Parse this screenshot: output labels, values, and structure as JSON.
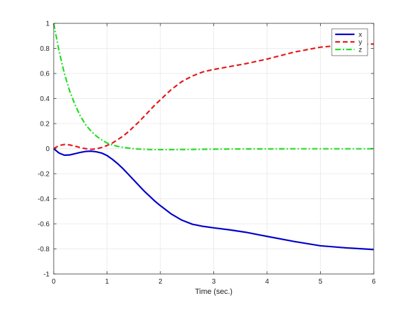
{
  "chart_data": {
    "type": "line",
    "title": "",
    "xlabel": "Time (sec.)",
    "ylabel": "",
    "xlim": [
      0,
      6
    ],
    "ylim": [
      -1,
      1
    ],
    "xticks": [
      0,
      1,
      2,
      3,
      4,
      5,
      6
    ],
    "xtick_labels": [
      "0",
      "1",
      "2",
      "3",
      "4",
      "5",
      "6"
    ],
    "yticks": [
      -1,
      -0.8,
      -0.6,
      -0.4,
      -0.2,
      0,
      0.2,
      0.4,
      0.6,
      0.8,
      1
    ],
    "ytick_labels": [
      "-1",
      "-0.8",
      "-0.6",
      "-0.4",
      "-0.2",
      "0",
      "0.2",
      "0.4",
      "0.6",
      "0.8",
      "1"
    ],
    "grid": true,
    "legend_position": "top-right",
    "series": [
      {
        "name": "x",
        "color": "#0000cc",
        "dash": "solid",
        "x": [
          0,
          0.1,
          0.2,
          0.3,
          0.4,
          0.5,
          0.6,
          0.7,
          0.8,
          0.9,
          1.0,
          1.1,
          1.2,
          1.3,
          1.4,
          1.5,
          1.6,
          1.7,
          1.8,
          1.9,
          2.0,
          2.2,
          2.4,
          2.6,
          2.8,
          3.0,
          3.3,
          3.6,
          4.0,
          4.5,
          5.0,
          5.5,
          6.0
        ],
        "y": [
          0,
          -0.035,
          -0.052,
          -0.05,
          -0.04,
          -0.03,
          -0.022,
          -0.02,
          -0.025,
          -0.035,
          -0.055,
          -0.085,
          -0.12,
          -0.16,
          -0.205,
          -0.25,
          -0.295,
          -0.34,
          -0.38,
          -0.42,
          -0.455,
          -0.52,
          -0.57,
          -0.603,
          -0.62,
          -0.632,
          -0.648,
          -0.667,
          -0.7,
          -0.74,
          -0.775,
          -0.792,
          -0.805
        ]
      },
      {
        "name": "y",
        "color": "#e31a1c",
        "dash": "dashed",
        "x": [
          0,
          0.1,
          0.2,
          0.3,
          0.4,
          0.5,
          0.6,
          0.7,
          0.8,
          0.9,
          1.0,
          1.1,
          1.2,
          1.3,
          1.4,
          1.5,
          1.6,
          1.7,
          1.8,
          1.9,
          2.0,
          2.2,
          2.4,
          2.6,
          2.8,
          3.0,
          3.3,
          3.6,
          4.0,
          4.5,
          5.0,
          5.5,
          6.0
        ],
        "y": [
          0,
          0.025,
          0.033,
          0.03,
          0.02,
          0.008,
          0.0,
          -0.005,
          -0.002,
          0.01,
          0.025,
          0.045,
          0.072,
          0.1,
          0.135,
          0.175,
          0.215,
          0.26,
          0.305,
          0.35,
          0.39,
          0.47,
          0.535,
          0.58,
          0.613,
          0.632,
          0.655,
          0.678,
          0.715,
          0.77,
          0.81,
          0.828,
          0.835
        ]
      },
      {
        "name": "z",
        "color": "#22dd22",
        "dash": "dashdot",
        "x": [
          0,
          0.1,
          0.2,
          0.3,
          0.4,
          0.5,
          0.6,
          0.7,
          0.8,
          0.9,
          1.0,
          1.1,
          1.2,
          1.3,
          1.4,
          1.5,
          1.6,
          1.7,
          1.8,
          1.9,
          2.0,
          2.2,
          2.4,
          2.6,
          2.8,
          3.0,
          3.3,
          3.6,
          4.0,
          4.5,
          5.0,
          5.5,
          6.0
        ],
        "y": [
          1.0,
          0.78,
          0.6,
          0.46,
          0.35,
          0.26,
          0.19,
          0.14,
          0.1,
          0.07,
          0.045,
          0.03,
          0.018,
          0.01,
          0.005,
          0.0,
          -0.003,
          -0.005,
          -0.007,
          -0.008,
          -0.008,
          -0.008,
          -0.007,
          -0.006,
          -0.005,
          -0.004,
          -0.003,
          -0.002,
          -0.002,
          -0.001,
          -0.001,
          -0.001,
          -0.001
        ]
      }
    ]
  }
}
